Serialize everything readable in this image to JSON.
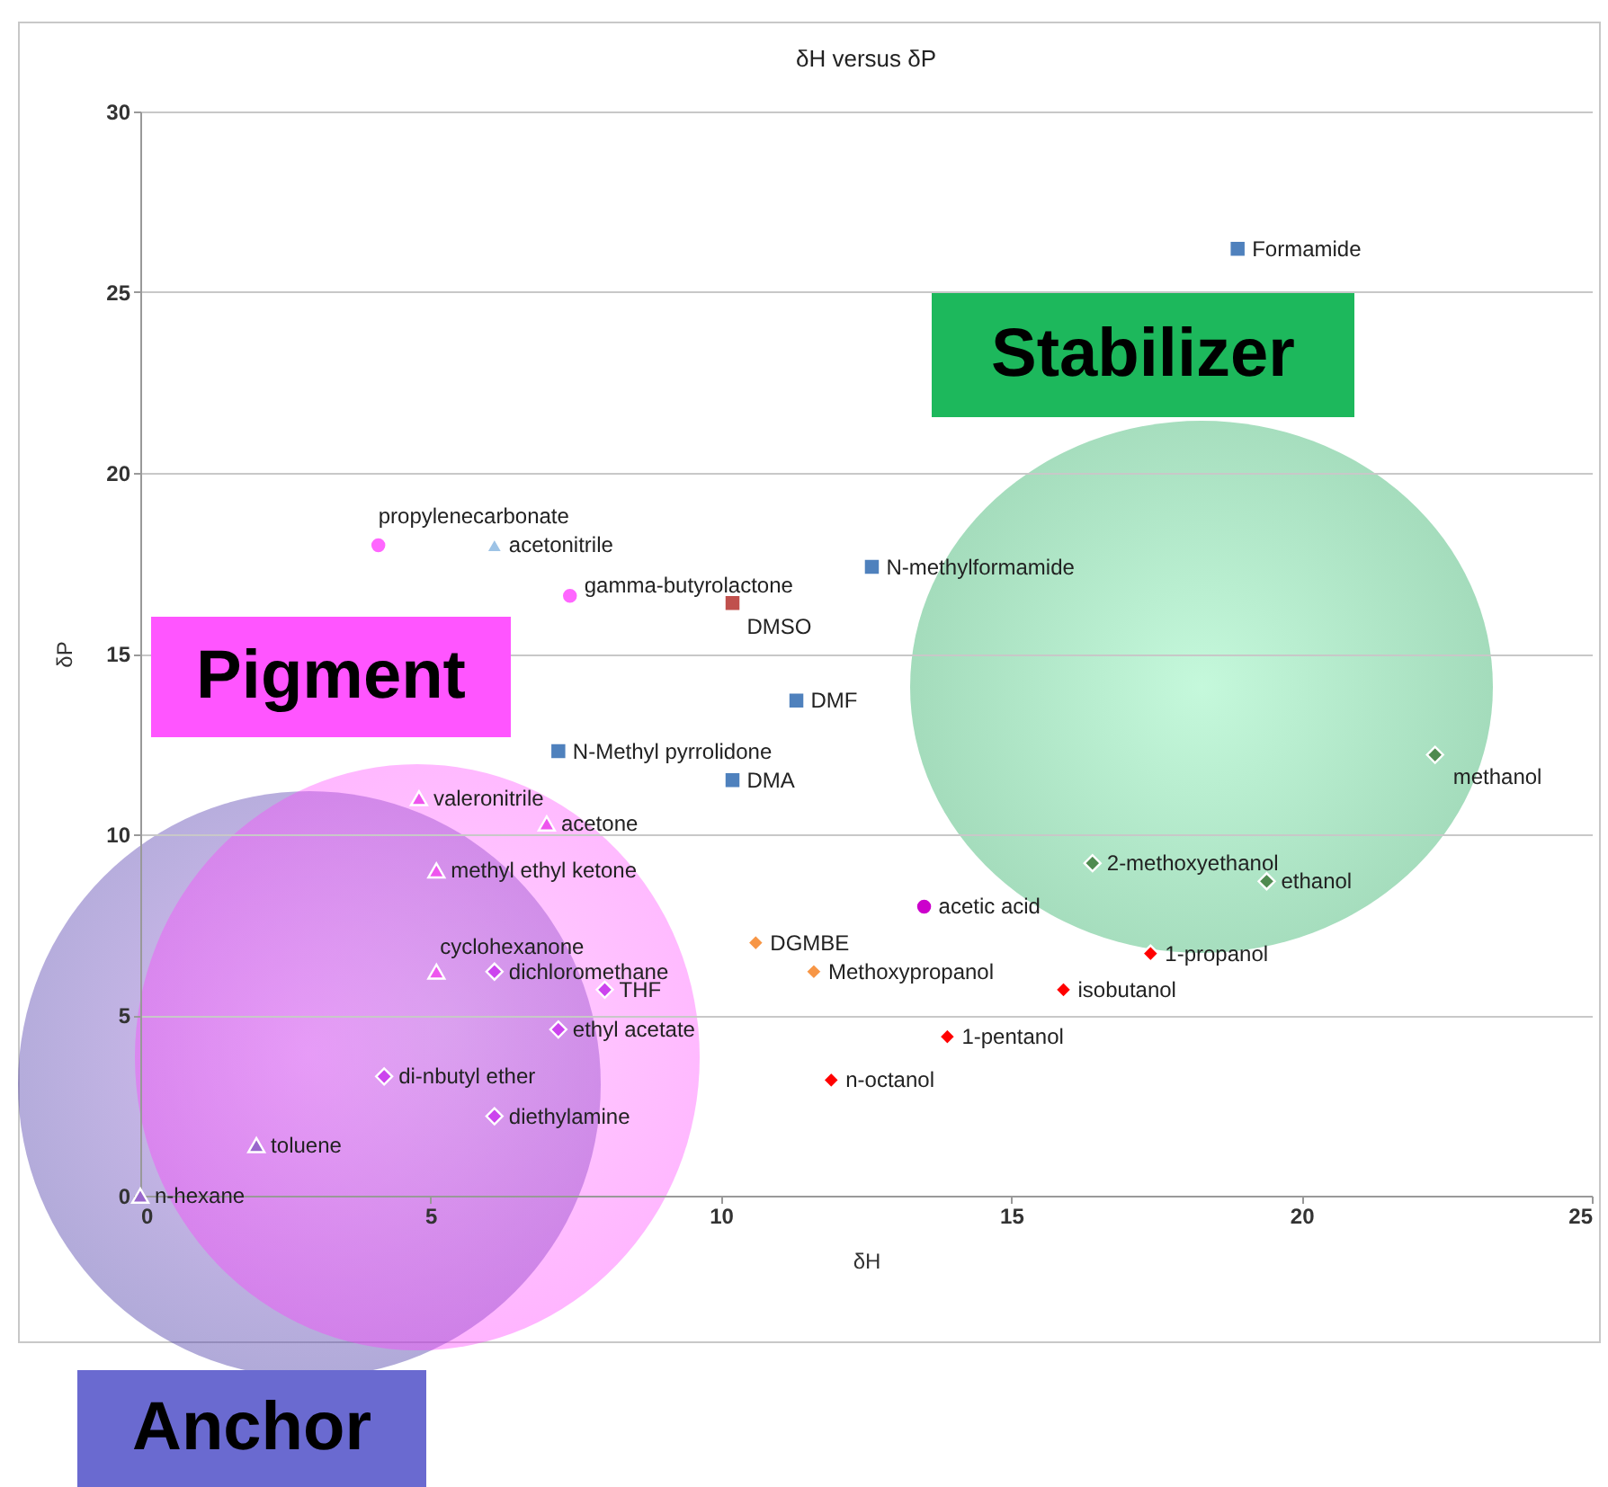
{
  "chart_data": {
    "type": "scatter",
    "title": "δH versus δP",
    "xlabel": "δH",
    "ylabel": "δP",
    "xlim": [
      0,
      25
    ],
    "xticks": [
      0,
      5,
      10,
      15,
      20,
      25
    ],
    "ylim": [
      0,
      30
    ],
    "yticks": [
      0,
      5,
      10,
      15,
      20,
      25,
      30
    ],
    "grid": "y",
    "series": [
      {
        "color": "#4f81bd",
        "marker": "square",
        "x": [
          18.9,
          12.6,
          11.3,
          7.2,
          10.2
        ],
        "values": [
          26.2,
          17.4,
          13.7,
          12.3,
          11.5
        ]
      },
      {
        "color": "#c0504d",
        "marker": "square",
        "x": [
          10.2
        ],
        "values": [
          16.4
        ]
      },
      {
        "color": "#ff66ff",
        "marker": "circle",
        "x": [
          4.1,
          7.4
        ],
        "values": [
          18.0,
          16.6
        ]
      },
      {
        "color": "#9dc3e6",
        "marker": "triangle",
        "x": [
          6.1
        ],
        "values": [
          18.0
        ]
      },
      {
        "color": "#ee55ee",
        "marker": "triangle",
        "x": [
          4.8,
          7.0,
          5.1,
          5.1
        ],
        "values": [
          11.0,
          10.3,
          9.0,
          6.2
        ]
      },
      {
        "color": "#cc44ee",
        "marker": "diamond",
        "x": [
          6.1,
          8.0,
          7.2,
          4.2,
          6.1
        ],
        "values": [
          6.2,
          5.7,
          4.6,
          3.3,
          2.2
        ]
      },
      {
        "color": "#9966cc",
        "marker": "triangle",
        "x": [
          2.0,
          0
        ],
        "values": [
          1.4,
          0
        ]
      },
      {
        "color": "#f79646",
        "marker": "diamond",
        "x": [
          10.6,
          11.6
        ],
        "values": [
          7.0,
          6.2
        ]
      },
      {
        "color": "#cc00cc",
        "marker": "circle",
        "x": [
          13.5
        ],
        "values": [
          8.0
        ]
      },
      {
        "color": "#4f8a4f",
        "marker": "diamond",
        "x": [
          22.3,
          16.4,
          19.4
        ],
        "values": [
          12.2,
          9.2,
          8.7
        ]
      },
      {
        "color": "#ff0000",
        "marker": "diamond",
        "x": [
          17.4,
          15.9,
          13.9,
          11.9
        ],
        "values": [
          6.7,
          5.7,
          4.4,
          3.2
        ]
      }
    ],
    "annotations": [
      "Stabilizer",
      "Pigment",
      "Anchor",
      {
        "text": "Formamide",
        "x": 18.9,
        "y": 26.2
      },
      {
        "text": "N-methylformamide",
        "x": 12.6,
        "y": 17.4
      },
      {
        "text": "DMF",
        "x": 11.3,
        "y": 13.7
      },
      {
        "text": "N-Methyl pyrrolidone",
        "x": 7.2,
        "y": 12.3
      },
      {
        "text": "DMA",
        "x": 10.2,
        "y": 11.5
      },
      {
        "text": "DMSO",
        "x": 10.2,
        "y": 16.4
      },
      {
        "text": "propylenecarbonate",
        "x": 4.1,
        "y": 18.0
      },
      {
        "text": "gamma-butyrolactone",
        "x": 7.4,
        "y": 16.6
      },
      {
        "text": "acetonitrile",
        "x": 6.1,
        "y": 18.0
      },
      {
        "text": "valeronitrile",
        "x": 4.8,
        "y": 11.0
      },
      {
        "text": "acetone",
        "x": 7.0,
        "y": 10.3
      },
      {
        "text": "methyl ethyl ketone",
        "x": 5.1,
        "y": 9.0
      },
      {
        "text": "cyclohexanone",
        "x": 5.1,
        "y": 6.2
      },
      {
        "text": "dichloromethane",
        "x": 6.1,
        "y": 6.2
      },
      {
        "text": "THF",
        "x": 8.0,
        "y": 5.7
      },
      {
        "text": "ethyl acetate",
        "x": 7.2,
        "y": 4.6
      },
      {
        "text": "di-nbutyl ether",
        "x": 4.2,
        "y": 3.3
      },
      {
        "text": "diethylamine",
        "x": 6.1,
        "y": 2.2
      },
      {
        "text": "toluene",
        "x": 2.0,
        "y": 1.4
      },
      {
        "text": "n-hexane",
        "x": 0,
        "y": 0
      },
      {
        "text": "DGMBE",
        "x": 10.6,
        "y": 7.0
      },
      {
        "text": "Methoxypropanol",
        "x": 11.6,
        "y": 6.2
      },
      {
        "text": "acetic acid",
        "x": 13.5,
        "y": 8.0
      },
      {
        "text": "methanol",
        "x": 22.3,
        "y": 12.2
      },
      {
        "text": "2-methoxyethanol",
        "x": 16.4,
        "y": 9.2
      },
      {
        "text": "ethanol",
        "x": 19.4,
        "y": 8.7
      },
      {
        "text": "1-propanol",
        "x": 17.4,
        "y": 6.7
      },
      {
        "text": "isobutanol",
        "x": 15.9,
        "y": 5.7
      },
      {
        "text": "1-pentanol",
        "x": 13.9,
        "y": 4.4
      },
      {
        "text": "n-octanol",
        "x": 11.9,
        "y": 3.2
      }
    ]
  }
}
